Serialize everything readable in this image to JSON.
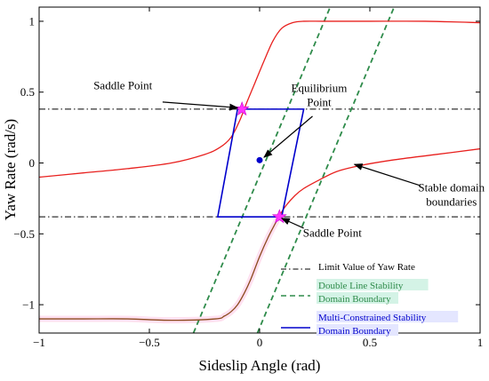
{
  "chart_data": {
    "type": "line",
    "xlabel": "Sideslip Angle (rad)",
    "ylabel": "Yaw Rate (rad/s)",
    "xlim": [
      -1,
      1
    ],
    "ylim": [
      -1.2,
      1.1
    ],
    "xticks": [
      -1,
      -0.5,
      0,
      0.5,
      1
    ],
    "xtick_labels": [
      "−1",
      "−0.5",
      "0",
      "0.5",
      "1"
    ],
    "yticks": [
      -1,
      -0.5,
      0,
      0.5,
      1
    ],
    "ytick_labels": [
      "−1",
      "−0.5",
      "0",
      "0.5",
      "1"
    ],
    "grid": false,
    "legend_position": "bottom-right",
    "legend": [
      {
        "key": "limit",
        "lines": [
          "Limit Value of Yaw Rate"
        ],
        "color": "#000000",
        "dash": "dashdot"
      },
      {
        "key": "double",
        "lines": [
          "Double Line Stability",
          "Domain Boundary"
        ],
        "color": "#2e8b4a",
        "dash": "dashed",
        "highlight": "#d4f3e6"
      },
      {
        "key": "multi",
        "lines": [
          "Multi-Constrained Stability",
          "Domain Boundary"
        ],
        "color": "#0000cc",
        "dash": "solid",
        "highlight": "#e4e6ff"
      }
    ],
    "yaw_rate_limit": [
      0.38,
      -0.38
    ],
    "upper_boundary": {
      "color": "#e8201e",
      "x": [
        -1,
        -0.8,
        -0.6,
        -0.4,
        -0.25,
        -0.18,
        -0.13,
        -0.09,
        -0.06,
        -0.02,
        0.02,
        0.06,
        0.1,
        0.15,
        0.2,
        0.3,
        0.5,
        0.75,
        1
      ],
      "y": [
        -0.1,
        -0.07,
        -0.04,
        0.0,
        0.06,
        0.11,
        0.18,
        0.3,
        0.42,
        0.57,
        0.72,
        0.86,
        0.95,
        0.99,
        1.0,
        1.0,
        1.0,
        1.0,
        0.99
      ]
    },
    "lower_boundary_stable": {
      "color": "#e8201e",
      "x": [
        0.09,
        0.12,
        0.16,
        0.2,
        0.27,
        0.35,
        0.45,
        0.6,
        0.8,
        1.0
      ],
      "y": [
        -0.37,
        -0.3,
        -0.23,
        -0.18,
        -0.12,
        -0.06,
        -0.02,
        0.02,
        0.06,
        0.1
      ]
    },
    "lower_boundary_unstable": {
      "color": "#8b4a1e",
      "x": [
        -1,
        -0.8,
        -0.6,
        -0.4,
        -0.2,
        -0.16,
        -0.13,
        -0.1,
        -0.07,
        -0.04,
        0.0,
        0.04,
        0.07,
        0.09
      ],
      "y": [
        -1.1,
        -1.1,
        -1.1,
        -1.11,
        -1.1,
        -1.08,
        -1.05,
        -1.0,
        -0.92,
        -0.82,
        -0.66,
        -0.52,
        -0.43,
        -0.37
      ]
    },
    "double_line_boundary": {
      "color": "#2e8b4a",
      "lines": [
        {
          "x": [
            -0.3,
            0.32
          ],
          "y": [
            -1.2,
            1.1
          ]
        },
        {
          "x": [
            -0.01,
            0.61
          ],
          "y": [
            -1.2,
            1.1
          ]
        }
      ]
    },
    "multi_constrained_boundary": {
      "color": "#0000cc",
      "x": [
        -0.1,
        0.2,
        0.1,
        -0.19,
        -0.1
      ],
      "y": [
        0.38,
        0.38,
        -0.38,
        -0.38,
        0.38
      ]
    },
    "equilibrium_point": {
      "x": 0.0,
      "y": 0.02,
      "color": "#0000cc"
    },
    "saddle_points": [
      {
        "x": -0.08,
        "y": 0.38,
        "color": "#ff33ff"
      },
      {
        "x": 0.09,
        "y": -0.38,
        "color": "#ff33ff"
      }
    ],
    "annotations": [
      {
        "key": "saddle_upper",
        "lines": [
          "Saddle Point"
        ],
        "text_x": -0.62,
        "text_y": 0.52,
        "arrow_from": [
          -0.44,
          0.43
        ],
        "arrow_to": [
          -0.1,
          0.39
        ]
      },
      {
        "key": "equilibrium",
        "lines": [
          "Equilibrium",
          "Point"
        ],
        "text_x": 0.27,
        "text_y": 0.5,
        "arrow_from": [
          0.24,
          0.33
        ],
        "arrow_to": [
          0.02,
          0.04
        ]
      },
      {
        "key": "stable",
        "lines": [
          "Stable domain",
          "boundaries"
        ],
        "text_x": 0.87,
        "text_y": -0.2,
        "arrow_from": [
          0.73,
          -0.16
        ],
        "arrow_to": [
          0.43,
          -0.01
        ]
      },
      {
        "key": "saddle_lower",
        "lines": [
          "Saddle Point"
        ],
        "text_x": 0.33,
        "text_y": -0.52,
        "arrow_from": [
          0.2,
          -0.46
        ],
        "arrow_to": [
          0.1,
          -0.39
        ]
      }
    ]
  }
}
